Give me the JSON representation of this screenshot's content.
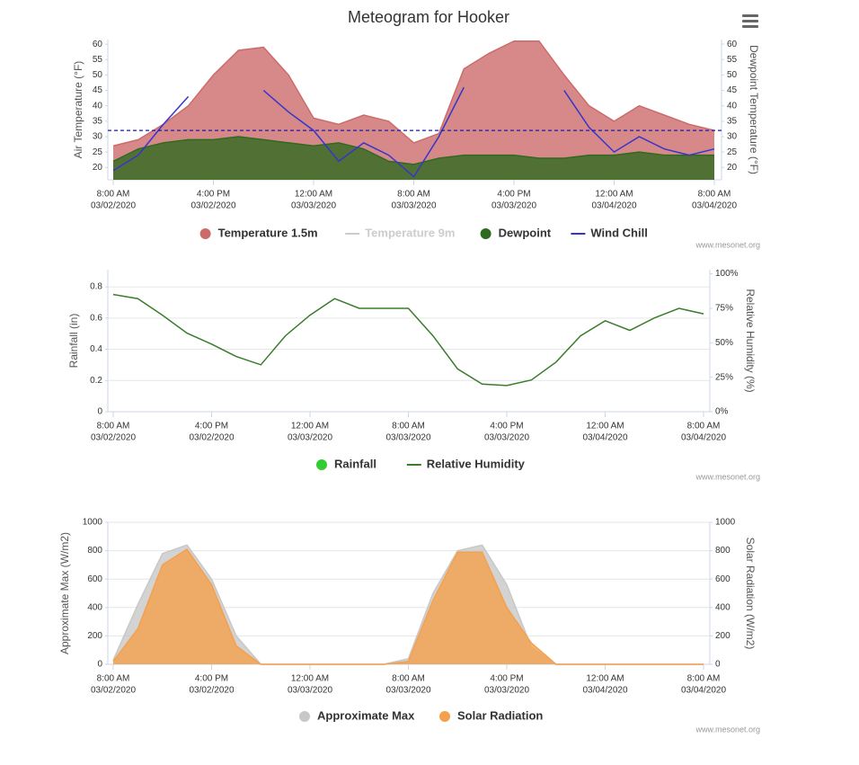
{
  "title": "Meteogram for Hooker",
  "chart_data": [
    {
      "type": "line",
      "y_label": "Air Temperature (°F)",
      "y2_label": "Dewpoint Temperature (°F)",
      "credits": "www.mesonet.org",
      "x": [
        "03/02/2020 8:00 AM",
        "03/02/2020 10:00 AM",
        "03/02/2020 12:00 PM",
        "03/02/2020 2:00 PM",
        "03/02/2020 4:00 PM",
        "03/02/2020 6:00 PM",
        "03/02/2020 8:00 PM",
        "03/02/2020 10:00 PM",
        "03/03/2020 12:00 AM",
        "03/03/2020 2:00 AM",
        "03/03/2020 4:00 AM",
        "03/03/2020 6:00 AM",
        "03/03/2020 8:00 AM",
        "03/03/2020 10:00 AM",
        "03/03/2020 12:00 PM",
        "03/03/2020 2:00 PM",
        "03/03/2020 4:00 PM",
        "03/03/2020 6:00 PM",
        "03/03/2020 8:00 PM",
        "03/03/2020 10:00 PM",
        "03/04/2020 12:00 AM",
        "03/04/2020 2:00 AM",
        "03/04/2020 4:00 AM",
        "03/04/2020 6:00 AM",
        "03/04/2020 8:00 AM"
      ],
      "xlim": [
        "03/02/2020 8:00 AM",
        "03/04/2020 8:00 AM"
      ],
      "xticks": [
        {
          "time": "8:00 AM",
          "date": "03/02/2020"
        },
        {
          "time": "4:00 PM",
          "date": "03/02/2020"
        },
        {
          "time": "12:00 AM",
          "date": "03/03/2020"
        },
        {
          "time": "8:00 AM",
          "date": "03/03/2020"
        },
        {
          "time": "4:00 PM",
          "date": "03/03/2020"
        },
        {
          "time": "12:00 AM",
          "date": "03/04/2020"
        },
        {
          "time": "8:00 AM",
          "date": "03/04/2020"
        }
      ],
      "ylim": [
        16,
        61.5
      ],
      "yticks": [
        20,
        25,
        30,
        35,
        40,
        45,
        50,
        55,
        60
      ],
      "y2lim": [
        16,
        61.5
      ],
      "y2ticks": [
        20,
        25,
        30,
        35,
        40,
        45,
        50,
        55,
        60
      ],
      "grid": false,
      "plot_lines": [
        {
          "value": 32,
          "color": "#1a1aa6"
        }
      ],
      "series": [
        {
          "name": "Temperature 1.5m",
          "kind": "area",
          "color": "#cd6b6b",
          "values": [
            27,
            29,
            34,
            40,
            50,
            58,
            59,
            50,
            36,
            34,
            37,
            35,
            28,
            31,
            52,
            57,
            61,
            61,
            50,
            40,
            35,
            40,
            37,
            34,
            32
          ]
        },
        {
          "name": "Temperature 9m",
          "kind": "line",
          "color": "#cccccc",
          "visible": false
        },
        {
          "name": "Dewpoint",
          "kind": "area",
          "axis": "y2",
          "color": "#2f6b1f",
          "values": [
            22,
            26,
            28,
            29,
            29,
            30,
            29,
            28,
            27,
            28,
            26,
            22,
            21,
            23,
            24,
            24,
            24,
            23,
            23,
            24,
            24,
            25,
            24,
            24,
            24
          ]
        },
        {
          "name": "Wind Chill",
          "kind": "line",
          "color": "#3535cc",
          "values": [
            19,
            24,
            34,
            43,
            null,
            null,
            45,
            38,
            32,
            22,
            28,
            24,
            17,
            30,
            46,
            null,
            null,
            null,
            45,
            33,
            25,
            30,
            26,
            24,
            26
          ]
        }
      ]
    },
    {
      "type": "line",
      "y_label": "Rainfall (in)",
      "y2_label": "Relative Humidity (%)",
      "credits": "www.mesonet.org",
      "x": [
        "03/02/2020 8:00 AM",
        "03/02/2020 10:00 AM",
        "03/02/2020 12:00 PM",
        "03/02/2020 2:00 PM",
        "03/02/2020 4:00 PM",
        "03/02/2020 6:00 PM",
        "03/02/2020 8:00 PM",
        "03/02/2020 10:00 PM",
        "03/03/2020 12:00 AM",
        "03/03/2020 2:00 AM",
        "03/03/2020 4:00 AM",
        "03/03/2020 6:00 AM",
        "03/03/2020 8:00 AM",
        "03/03/2020 10:00 AM",
        "03/03/2020 12:00 PM",
        "03/03/2020 2:00 PM",
        "03/03/2020 4:00 PM",
        "03/03/2020 6:00 PM",
        "03/03/2020 8:00 PM",
        "03/03/2020 10:00 PM",
        "03/04/2020 12:00 AM",
        "03/04/2020 2:00 AM",
        "03/04/2020 4:00 AM",
        "03/04/2020 6:00 AM",
        "03/04/2020 8:00 AM"
      ],
      "xlim": [
        "03/02/2020 8:00 AM",
        "03/04/2020 8:00 AM"
      ],
      "xticks": [
        {
          "time": "8:00 AM",
          "date": "03/02/2020"
        },
        {
          "time": "4:00 PM",
          "date": "03/02/2020"
        },
        {
          "time": "12:00 AM",
          "date": "03/03/2020"
        },
        {
          "time": "8:00 AM",
          "date": "03/03/2020"
        },
        {
          "time": "4:00 PM",
          "date": "03/03/2020"
        },
        {
          "time": "12:00 AM",
          "date": "03/04/2020"
        },
        {
          "time": "8:00 AM",
          "date": "03/04/2020"
        }
      ],
      "ylim": [
        0,
        0.91
      ],
      "yticks": [
        0,
        0.2,
        0.4,
        0.6,
        0.8
      ],
      "y2lim": [
        0,
        103
      ],
      "y2ticks": [
        {
          "value": 0,
          "label": "0%"
        },
        {
          "value": 25,
          "label": "25%"
        },
        {
          "value": 50,
          "label": "50%"
        },
        {
          "value": 75,
          "label": "75%"
        },
        {
          "value": 100,
          "label": "100%"
        }
      ],
      "grid": true,
      "series": [
        {
          "name": "Rainfall",
          "kind": "column",
          "color": "#33cc33",
          "values": [
            0,
            0,
            0,
            0,
            0,
            0,
            0,
            0,
            0,
            0,
            0,
            0,
            0,
            0,
            0,
            0,
            0,
            0,
            0,
            0,
            0,
            0,
            0,
            0,
            0
          ]
        },
        {
          "name": "Relative Humidity",
          "kind": "line",
          "axis": "y2",
          "color": "#3a7d2c",
          "values": [
            85,
            82,
            70,
            57,
            49,
            40,
            34,
            55,
            70,
            82,
            75,
            75,
            75,
            55,
            31,
            20,
            19,
            23,
            36,
            55,
            66,
            59,
            68,
            75,
            71
          ]
        }
      ]
    },
    {
      "type": "line",
      "y_label": "Approximate Max (W/m2)",
      "y2_label": "Solar Radiation (W/m2)",
      "credits": "www.mesonet.org",
      "x": [
        "03/02/2020 8:00 AM",
        "03/02/2020 10:00 AM",
        "03/02/2020 12:00 PM",
        "03/02/2020 2:00 PM",
        "03/02/2020 4:00 PM",
        "03/02/2020 6:00 PM",
        "03/02/2020 8:00 PM",
        "03/02/2020 10:00 PM",
        "03/03/2020 12:00 AM",
        "03/03/2020 2:00 AM",
        "03/03/2020 4:00 AM",
        "03/03/2020 6:00 AM",
        "03/03/2020 8:00 AM",
        "03/03/2020 10:00 AM",
        "03/03/2020 12:00 PM",
        "03/03/2020 2:00 PM",
        "03/03/2020 4:00 PM",
        "03/03/2020 6:00 PM",
        "03/03/2020 8:00 PM",
        "03/03/2020 10:00 PM",
        "03/04/2020 12:00 AM",
        "03/04/2020 2:00 AM",
        "03/04/2020 4:00 AM",
        "03/04/2020 6:00 AM",
        "03/04/2020 8:00 AM"
      ],
      "xlim": [
        "03/02/2020 8:00 AM",
        "03/04/2020 8:00 AM"
      ],
      "xticks": [
        {
          "time": "8:00 AM",
          "date": "03/02/2020"
        },
        {
          "time": "4:00 PM",
          "date": "03/02/2020"
        },
        {
          "time": "12:00 AM",
          "date": "03/03/2020"
        },
        {
          "time": "8:00 AM",
          "date": "03/03/2020"
        },
        {
          "time": "4:00 PM",
          "date": "03/03/2020"
        },
        {
          "time": "12:00 AM",
          "date": "03/04/2020"
        },
        {
          "time": "8:00 AM",
          "date": "03/04/2020"
        }
      ],
      "ylim": [
        0,
        1000
      ],
      "yticks": [
        0,
        200,
        400,
        600,
        800,
        1000
      ],
      "y2lim": [
        0,
        1000
      ],
      "y2ticks": [
        0,
        200,
        400,
        600,
        800,
        1000
      ],
      "grid": true,
      "series": [
        {
          "name": "Approximate Max",
          "kind": "area",
          "color": "#c8c8c8",
          "values": [
            30,
            420,
            780,
            840,
            600,
            200,
            0,
            0,
            0,
            0,
            0,
            0,
            40,
            500,
            800,
            840,
            560,
            120,
            0,
            0,
            0,
            0,
            0,
            0,
            0
          ]
        },
        {
          "name": "Solar Radiation",
          "kind": "area",
          "axis": "y2",
          "color": "#f5a04c",
          "values": [
            20,
            250,
            700,
            810,
            560,
            130,
            0,
            0,
            0,
            0,
            0,
            0,
            20,
            450,
            790,
            790,
            400,
            150,
            0,
            0,
            0,
            0,
            0,
            0,
            0
          ]
        }
      ]
    }
  ]
}
